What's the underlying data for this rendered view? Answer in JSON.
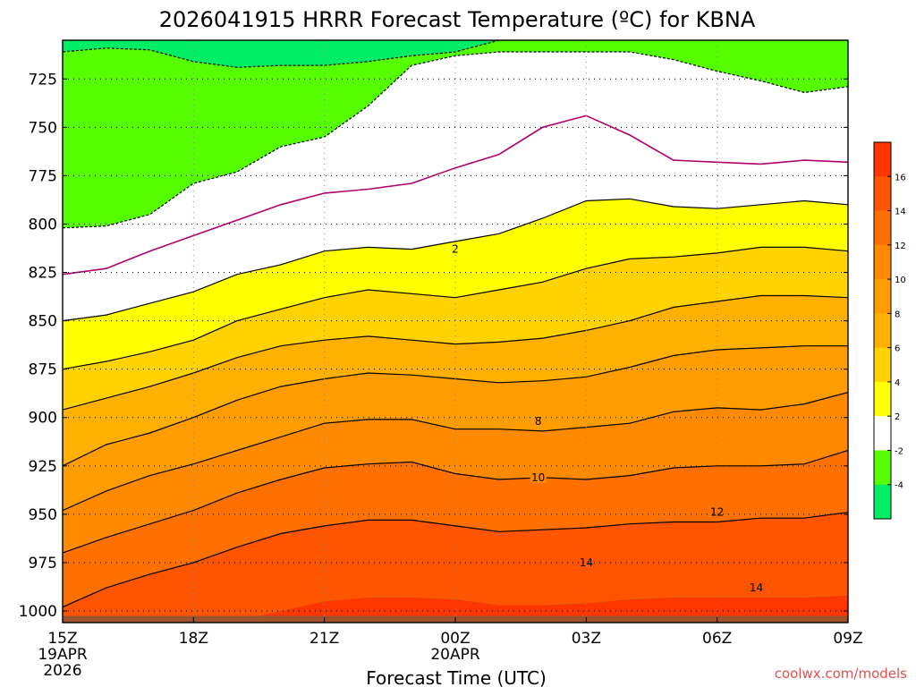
{
  "chart_data": {
    "type": "contour-filled",
    "title": "2026041915 HRRR Forecast Temperature (ºC) for KBNA",
    "xlabel": "Forecast Time (UTC)",
    "ylabel": "",
    "x_ticks": [
      {
        "hour": 0,
        "lines": [
          "15Z",
          "19APR",
          "2026"
        ]
      },
      {
        "hour": 3,
        "lines": [
          "18Z"
        ]
      },
      {
        "hour": 6,
        "lines": [
          "21Z"
        ]
      },
      {
        "hour": 9,
        "lines": [
          "00Z",
          "20APR"
        ]
      },
      {
        "hour": 12,
        "lines": [
          "03Z"
        ]
      },
      {
        "hour": 15,
        "lines": [
          "06Z"
        ]
      },
      {
        "hour": 18,
        "lines": [
          "09Z"
        ]
      }
    ],
    "y_axis": {
      "label": "",
      "scale": "pressure (hPa)",
      "range": [
        1006,
        705
      ],
      "inverted": true,
      "ticks": [
        725,
        750,
        775,
        800,
        825,
        850,
        875,
        900,
        925,
        950,
        975,
        1000
      ]
    },
    "grid": true,
    "forecast_hours": [
      0,
      1,
      2,
      3,
      4,
      5,
      6,
      7,
      8,
      9,
      10,
      11,
      12,
      13,
      14,
      15,
      16,
      17,
      18
    ],
    "isotherm_pressures_hPa": {
      "-4": [
        711,
        709,
        710,
        716,
        719,
        718,
        718,
        716,
        713,
        711,
        705,
        705,
        705,
        705,
        705,
        705,
        705,
        705,
        705
      ],
      "-2": [
        802,
        801,
        795,
        779,
        773,
        760,
        755,
        739,
        718,
        713,
        711,
        711,
        711,
        711,
        715,
        721,
        726,
        732,
        729
      ],
      "0": [
        826,
        823,
        814,
        806,
        798,
        790,
        784,
        782,
        779,
        771,
        764,
        750,
        744,
        754,
        767,
        768,
        769,
        767,
        768
      ],
      "2": [
        850,
        847,
        841,
        835,
        826,
        821,
        814,
        812,
        813,
        809,
        805,
        797,
        788,
        787,
        791,
        792,
        790,
        788,
        790
      ],
      "4": [
        875,
        871,
        866,
        860,
        850,
        844,
        838,
        834,
        836,
        838,
        834,
        830,
        823,
        818,
        817,
        815,
        812,
        812,
        814
      ],
      "6": [
        896,
        890,
        884,
        877,
        869,
        863,
        860,
        858,
        860,
        862,
        861,
        859,
        855,
        850,
        843,
        840,
        837,
        837,
        838
      ],
      "8": [
        925,
        914,
        908,
        900,
        891,
        884,
        880,
        877,
        878,
        880,
        882,
        881,
        879,
        874,
        868,
        865,
        864,
        863,
        863
      ],
      "10": [
        948,
        938,
        930,
        924,
        917,
        910,
        903,
        901,
        901,
        906,
        906,
        907,
        905,
        903,
        897,
        895,
        896,
        893,
        887
      ],
      "12": [
        970,
        962,
        955,
        948,
        939,
        932,
        926,
        924,
        923,
        929,
        932,
        931,
        932,
        930,
        926,
        925,
        925,
        924,
        917
      ],
      "14": [
        998,
        988,
        981,
        975,
        967,
        960,
        956,
        953,
        953,
        956,
        959,
        958,
        957,
        955,
        954,
        954,
        952,
        952,
        949
      ],
      "16": [
        1006,
        1006,
        1006,
        1006,
        1005,
        1000,
        995,
        993,
        993,
        994,
        997,
        997,
        996,
        994,
        993,
        993,
        993,
        993,
        992
      ]
    },
    "contour_labels": [
      {
        "text": "2",
        "hour": 9.0,
        "p": 813
      },
      {
        "text": "8",
        "hour": 10.9,
        "p": 902
      },
      {
        "text": "10",
        "hour": 10.9,
        "p": 931
      },
      {
        "text": "12",
        "hour": 15.0,
        "p": 949
      },
      {
        "text": "14",
        "hour": 12.0,
        "p": 975
      },
      {
        "text": "14",
        "hour": 15.9,
        "p": 988
      }
    ],
    "colorbar": {
      "ticks": [
        "16",
        "14",
        "12",
        "10",
        "8",
        "6",
        "4",
        "2",
        "-2",
        "-4"
      ],
      "bins": [
        {
          "lo": 16,
          "hi": 18,
          "color": "#ff3600"
        },
        {
          "lo": 14,
          "hi": 16,
          "color": "#ff5400"
        },
        {
          "lo": 12,
          "hi": 14,
          "color": "#ff7000"
        },
        {
          "lo": 10,
          "hi": 12,
          "color": "#ff8a00"
        },
        {
          "lo": 8,
          "hi": 10,
          "color": "#ff9c00"
        },
        {
          "lo": 6,
          "hi": 8,
          "color": "#ffb000"
        },
        {
          "lo": 4,
          "hi": 6,
          "color": "#ffd200"
        },
        {
          "lo": 2,
          "hi": 4,
          "color": "#ffff00"
        },
        {
          "lo": -2,
          "hi": 2,
          "color": "#ffffff"
        },
        {
          "lo": -4,
          "hi": -2,
          "color": "#55ff00"
        },
        {
          "lo": -6,
          "hi": -4,
          "color": "#00ee66"
        }
      ]
    },
    "colors": {
      "line_2c": "#b0006e",
      "ground": "#a0522d",
      "contour": "#000000"
    }
  },
  "credit": "coolwx.com/models"
}
